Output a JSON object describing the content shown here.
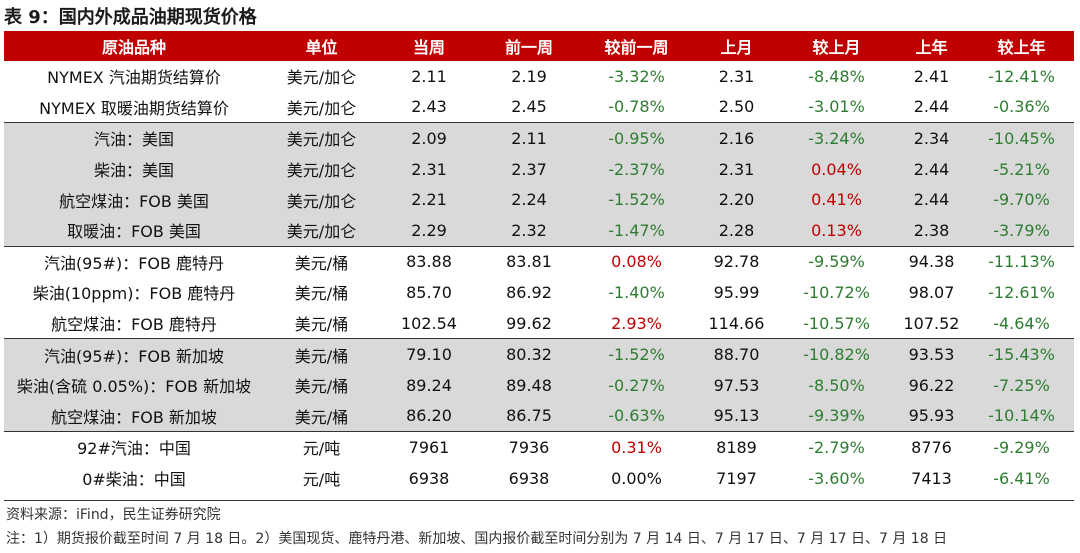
{
  "title": "表 9：国内外成品油期现货价格",
  "headers": [
    "原油品种",
    "单位",
    "当周",
    "前一周",
    "较前一周",
    "上月",
    "较上月",
    "上年",
    "较上年"
  ],
  "rows": [
    {
      "group": "white",
      "sep": false,
      "cells": [
        "NYMEX 汽油期货结算价",
        "美元/加仑",
        "2.11",
        "2.19",
        "-3.32%",
        "2.31",
        "-8.48%",
        "2.41",
        "-12.41%"
      ]
    },
    {
      "group": "white",
      "sep": false,
      "cells": [
        "NYMEX 取暖油期货结算价",
        "美元/加仑",
        "2.43",
        "2.45",
        "-0.78%",
        "2.50",
        "-3.01%",
        "2.44",
        "-0.36%"
      ]
    },
    {
      "group": "grey",
      "sep": true,
      "cells": [
        "汽油：美国",
        "美元/加仑",
        "2.09",
        "2.11",
        "-0.95%",
        "2.16",
        "-3.24%",
        "2.34",
        "-10.45%"
      ]
    },
    {
      "group": "grey",
      "sep": false,
      "cells": [
        "柴油：美国",
        "美元/加仑",
        "2.31",
        "2.37",
        "-2.37%",
        "2.31",
        "0.04%",
        "2.44",
        "-5.21%"
      ]
    },
    {
      "group": "grey",
      "sep": false,
      "cells": [
        "航空煤油：FOB 美国",
        "美元/加仑",
        "2.21",
        "2.24",
        "-1.52%",
        "2.20",
        "0.41%",
        "2.44",
        "-9.70%"
      ]
    },
    {
      "group": "grey",
      "sep": false,
      "cells": [
        "取暖油：FOB 美国",
        "美元/加仑",
        "2.29",
        "2.32",
        "-1.47%",
        "2.28",
        "0.13%",
        "2.38",
        "-3.79%"
      ]
    },
    {
      "group": "white",
      "sep": true,
      "cells": [
        "汽油(95#)：FOB 鹿特丹",
        "美元/桶",
        "83.88",
        "83.81",
        "0.08%",
        "92.78",
        "-9.59%",
        "94.38",
        "-11.13%"
      ]
    },
    {
      "group": "white",
      "sep": false,
      "cells": [
        "柴油(10ppm)：FOB 鹿特丹",
        "美元/桶",
        "85.70",
        "86.92",
        "-1.40%",
        "95.99",
        "-10.72%",
        "98.07",
        "-12.61%"
      ]
    },
    {
      "group": "white",
      "sep": false,
      "cells": [
        "航空煤油：FOB 鹿特丹",
        "美元/桶",
        "102.54",
        "99.62",
        "2.93%",
        "114.66",
        "-10.57%",
        "107.52",
        "-4.64%"
      ]
    },
    {
      "group": "grey",
      "sep": true,
      "cells": [
        "汽油(95#)：FOB 新加坡",
        "美元/桶",
        "79.10",
        "80.32",
        "-1.52%",
        "88.70",
        "-10.82%",
        "93.53",
        "-15.43%"
      ]
    },
    {
      "group": "grey",
      "sep": false,
      "cells": [
        "柴油(含硫 0.05%)：FOB 新加坡",
        "美元/桶",
        "89.24",
        "89.48",
        "-0.27%",
        "97.53",
        "-8.50%",
        "96.22",
        "-7.25%"
      ]
    },
    {
      "group": "grey",
      "sep": false,
      "cells": [
        "航空煤油：FOB 新加坡",
        "美元/桶",
        "86.20",
        "86.75",
        "-0.63%",
        "95.13",
        "-9.39%",
        "95.93",
        "-10.14%"
      ]
    },
    {
      "group": "white",
      "sep": true,
      "cells": [
        "92#汽油：中国",
        "元/吨",
        "7961",
        "7936",
        "0.31%",
        "8189",
        "-2.79%",
        "8776",
        "-9.29%"
      ]
    },
    {
      "group": "white",
      "sep": false,
      "cells": [
        "0#柴油：中国",
        "元/吨",
        "6938",
        "6938",
        "0.00%",
        "7197",
        "-3.60%",
        "7413",
        "-6.41%"
      ]
    }
  ],
  "source": "资料来源：iFind，民生证券研究院",
  "note": "注：1）期货报价截至时间 7 月 18 日。2）美国现货、鹿特丹港、新加坡、国内报价截至时间分别为 7 月 14 日、7 月 17 日、7 月 17 日、7 月 18 日",
  "colors": {
    "header_bg": "#c00000",
    "positive": "#c00000",
    "negative": "#2e7d32",
    "grey_band": "#d9d9d9"
  }
}
